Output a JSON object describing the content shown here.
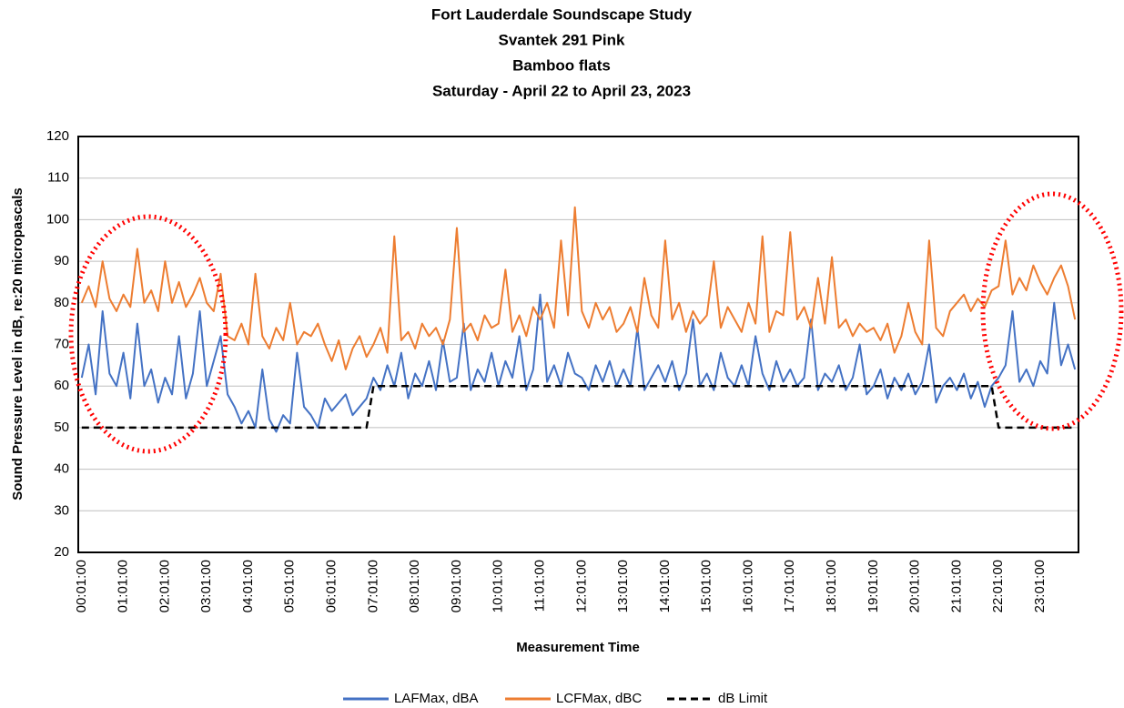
{
  "chart_data": {
    "type": "line",
    "title": [
      "Fort Lauderdale Soundscape Study",
      "Svantek 291 Pink",
      "Bamboo flats",
      "Saturday - April 22 to April 23, 2023"
    ],
    "x_label": "Measurement Time",
    "y_label": "Sound Pressure Level in dB, re:20 micropascals",
    "ylim": [
      20,
      120
    ],
    "yticks": [
      20,
      30,
      40,
      50,
      60,
      70,
      80,
      90,
      100,
      110,
      120
    ],
    "grid": true,
    "legend": "bottom",
    "categories": [
      "00:01:00",
      null,
      null,
      null,
      null,
      null,
      "01:01:00",
      null,
      null,
      null,
      null,
      null,
      "02:01:00",
      null,
      null,
      null,
      null,
      null,
      "03:01:00",
      null,
      null,
      null,
      null,
      null,
      "04:01:00",
      null,
      null,
      null,
      null,
      null,
      "05:01:00",
      null,
      null,
      null,
      null,
      null,
      "06:01:00",
      null,
      null,
      null,
      null,
      null,
      "07:01:00",
      null,
      null,
      null,
      null,
      null,
      "08:01:00",
      null,
      null,
      null,
      null,
      null,
      "09:01:00",
      null,
      null,
      null,
      null,
      null,
      "10:01:00",
      null,
      null,
      null,
      null,
      null,
      "11:01:00",
      null,
      null,
      null,
      null,
      null,
      "12:01:00",
      null,
      null,
      null,
      null,
      null,
      "13:01:00",
      null,
      null,
      null,
      null,
      null,
      "14:01:00",
      null,
      null,
      null,
      null,
      null,
      "15:01:00",
      null,
      null,
      null,
      null,
      null,
      "16:01:00",
      null,
      null,
      null,
      null,
      null,
      "17:01:00",
      null,
      null,
      null,
      null,
      null,
      "18:01:00",
      null,
      null,
      null,
      null,
      null,
      "19:01:00",
      null,
      null,
      null,
      null,
      null,
      "20:01:00",
      null,
      null,
      null,
      null,
      null,
      "21:01:00",
      null,
      null,
      null,
      null,
      null,
      "22:01:00",
      null,
      null,
      null,
      null,
      null,
      "23:01:00",
      null,
      null,
      null,
      null,
      null
    ],
    "series": [
      {
        "name": "LAFMax, dBA",
        "color": "#4472c4",
        "line_style": "solid",
        "values": [
          62,
          70,
          58,
          78,
          63,
          60,
          68,
          57,
          75,
          60,
          64,
          56,
          62,
          58,
          72,
          57,
          63,
          78,
          60,
          66,
          72,
          58,
          55,
          51,
          54,
          50,
          64,
          52,
          49,
          53,
          51,
          68,
          55,
          53,
          50,
          57,
          54,
          56,
          58,
          53,
          55,
          57,
          62,
          59,
          65,
          60,
          68,
          57,
          63,
          60,
          66,
          59,
          71,
          61,
          62,
          75,
          59,
          64,
          61,
          68,
          60,
          66,
          62,
          72,
          59,
          64,
          82,
          61,
          65,
          60,
          68,
          63,
          62,
          59,
          65,
          61,
          66,
          60,
          64,
          60,
          74,
          59,
          62,
          65,
          61,
          66,
          59,
          63,
          76,
          60,
          63,
          59,
          68,
          62,
          60,
          65,
          60,
          72,
          63,
          59,
          66,
          61,
          64,
          60,
          62,
          76,
          59,
          63,
          61,
          65,
          59,
          62,
          70,
          58,
          60,
          64,
          57,
          62,
          59,
          63,
          58,
          61,
          70,
          56,
          60,
          62,
          59,
          63,
          57,
          61,
          55,
          60,
          62,
          65,
          78,
          61,
          64,
          60,
          66,
          63,
          80,
          65,
          70,
          64
        ]
      },
      {
        "name": "LCFMax, dBC",
        "color": "#ed7d31",
        "line_style": "solid",
        "values": [
          80,
          84,
          79,
          90,
          81,
          78,
          82,
          79,
          93,
          80,
          83,
          78,
          90,
          80,
          85,
          79,
          82,
          86,
          80,
          78,
          87,
          72,
          71,
          75,
          70,
          87,
          72,
          69,
          74,
          71,
          80,
          70,
          73,
          72,
          75,
          70,
          66,
          71,
          64,
          69,
          72,
          67,
          70,
          74,
          68,
          96,
          71,
          73,
          69,
          75,
          72,
          74,
          70,
          76,
          98,
          73,
          75,
          71,
          77,
          74,
          75,
          88,
          73,
          77,
          72,
          79,
          76,
          80,
          74,
          95,
          77,
          103,
          78,
          74,
          80,
          76,
          79,
          73,
          75,
          79,
          73,
          86,
          77,
          74,
          95,
          76,
          80,
          73,
          78,
          75,
          77,
          90,
          74,
          79,
          76,
          73,
          80,
          75,
          96,
          73,
          78,
          77,
          97,
          76,
          79,
          74,
          86,
          75,
          91,
          74,
          76,
          72,
          75,
          73,
          74,
          71,
          75,
          68,
          72,
          80,
          73,
          70,
          95,
          74,
          72,
          78,
          80,
          82,
          78,
          81,
          79,
          83,
          84,
          95,
          82,
          86,
          83,
          89,
          85,
          82,
          86,
          89,
          84,
          76
        ]
      },
      {
        "name": "dB Limit",
        "color": "#000000",
        "line_style": "dashed",
        "values": [
          50,
          50,
          50,
          50,
          50,
          50,
          50,
          50,
          50,
          50,
          50,
          50,
          50,
          50,
          50,
          50,
          50,
          50,
          50,
          50,
          50,
          50,
          50,
          50,
          50,
          50,
          50,
          50,
          50,
          50,
          50,
          50,
          50,
          50,
          50,
          50,
          50,
          50,
          50,
          50,
          50,
          50,
          60,
          60,
          60,
          60,
          60,
          60,
          60,
          60,
          60,
          60,
          60,
          60,
          60,
          60,
          60,
          60,
          60,
          60,
          60,
          60,
          60,
          60,
          60,
          60,
          60,
          60,
          60,
          60,
          60,
          60,
          60,
          60,
          60,
          60,
          60,
          60,
          60,
          60,
          60,
          60,
          60,
          60,
          60,
          60,
          60,
          60,
          60,
          60,
          60,
          60,
          60,
          60,
          60,
          60,
          60,
          60,
          60,
          60,
          60,
          60,
          60,
          60,
          60,
          60,
          60,
          60,
          60,
          60,
          60,
          60,
          60,
          60,
          60,
          60,
          60,
          60,
          60,
          60,
          60,
          60,
          60,
          60,
          60,
          60,
          60,
          60,
          60,
          60,
          60,
          60,
          50,
          50,
          50,
          50,
          50,
          50,
          50,
          50,
          50,
          50,
          50,
          50
        ]
      }
    ]
  }
}
